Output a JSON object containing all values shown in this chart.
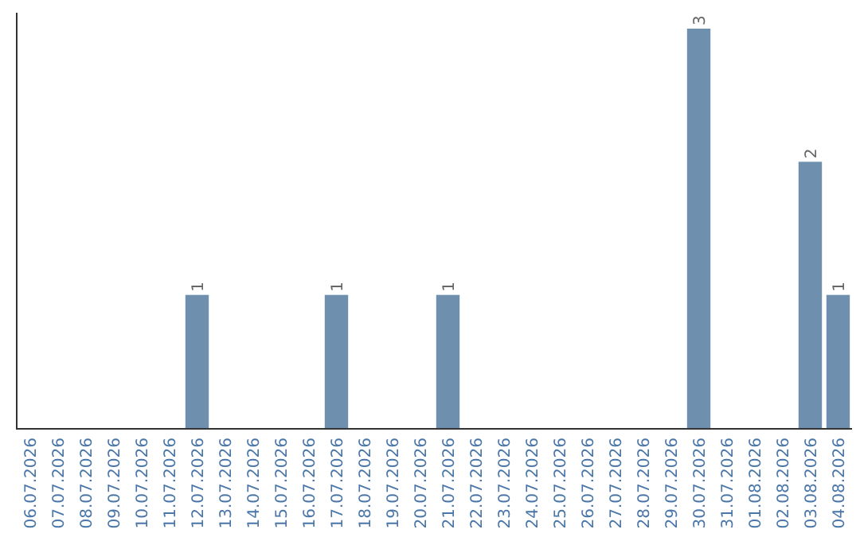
{
  "chart_data": {
    "type": "bar",
    "categories": [
      "06.07.2026",
      "07.07.2026",
      "08.07.2026",
      "09.07.2026",
      "10.07.2026",
      "11.07.2026",
      "12.07.2026",
      "13.07.2026",
      "14.07.2026",
      "15.07.2026",
      "16.07.2026",
      "17.07.2026",
      "18.07.2026",
      "19.07.2026",
      "20.07.2026",
      "21.07.2026",
      "22.07.2026",
      "23.07.2026",
      "24.07.2026",
      "25.07.2026",
      "26.07.2026",
      "27.07.2026",
      "28.07.2026",
      "29.07.2026",
      "30.07.2026",
      "31.07.2026",
      "01.08.2026",
      "02.08.2026",
      "03.08.2026",
      "04.08.2026"
    ],
    "values": [
      0,
      0,
      0,
      0,
      0,
      0,
      1,
      0,
      0,
      0,
      0,
      1,
      0,
      0,
      0,
      1,
      0,
      0,
      0,
      0,
      0,
      0,
      0,
      0,
      3,
      0,
      0,
      0,
      2,
      1
    ],
    "value_labels": [
      null,
      null,
      null,
      null,
      null,
      null,
      "1",
      null,
      null,
      null,
      null,
      "1",
      null,
      null,
      null,
      "1",
      null,
      null,
      null,
      null,
      null,
      null,
      null,
      null,
      "3",
      null,
      null,
      null,
      "2",
      "1"
    ],
    "color": "#6f8fae",
    "tick_labels": "x"
  }
}
